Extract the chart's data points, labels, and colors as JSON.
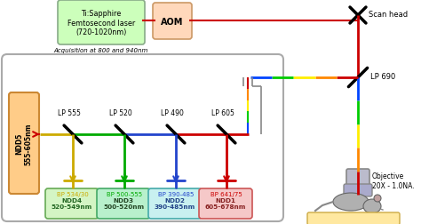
{
  "bg": "#ffffff",
  "fig_w": 4.74,
  "fig_h": 2.53,
  "laser_text": "Ti:Sapphire\nFemtosecond laser\n(720-1020nm)",
  "aom_text": "AOM",
  "acq_text": "Acquisition at 800 and 940nm",
  "scan_head_text": "Scan head",
  "lp690_text": "LP 690",
  "objective_text": "Objective\n20X - 1.0NA.",
  "ndd5_text": "NDD5\n555-605nm",
  "lp_labels": [
    "LP 555",
    "LP 520",
    "LP 490",
    "LP 605"
  ],
  "bp_labels": [
    "BP 534/30",
    "BP 500-555",
    "BP 390-485",
    "BP 641/75"
  ],
  "ndd_labels": [
    "NDD4\n520-549nm",
    "NDD3\n500-520nm",
    "NDD2\n390-485nm",
    "NDD1\n605-678nm"
  ],
  "ndd_fc": [
    "#d4f5c4",
    "#b8f0cc",
    "#c8f0f0",
    "#f5c8c8"
  ],
  "ndd_ec": [
    "#66aa55",
    "#44aa66",
    "#44aaaa",
    "#cc5555"
  ],
  "ndd_tc": [
    "#226622",
    "#224422",
    "#224488",
    "#882222"
  ],
  "det_colors": [
    "#ccaa00",
    "#00aa00",
    "#2244cc",
    "#cc0000"
  ],
  "rainbow_h": [
    "#cc0000",
    "#ff8800",
    "#ffee00",
    "#00cc00",
    "#0044ff"
  ],
  "rainbow_v": [
    "#0044ff",
    "#00cc00",
    "#ffee00",
    "#ff8800",
    "#cc0000"
  ],
  "laser_fc": "#ccffbb",
  "laser_ec": "#88aa88",
  "aom_fc": "#ffd8bb",
  "aom_ec": "#cc9966",
  "ndd5_fc": "#ffcc88",
  "ndd5_ec": "#cc8833"
}
